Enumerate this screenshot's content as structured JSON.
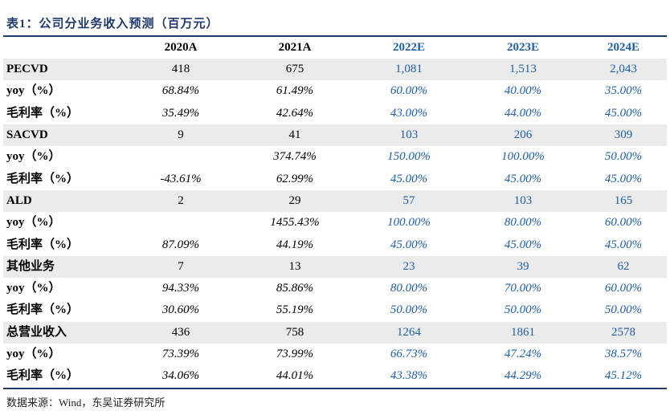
{
  "title": "表1：公司分业务收入预测（百万元）",
  "columns": [
    "",
    "2020A",
    "2021A",
    "2022E",
    "2023E",
    "2024E"
  ],
  "groups": [
    {
      "rows": [
        {
          "label": "PECVD",
          "type": "num",
          "values": [
            "418",
            "675",
            "1,081",
            "1,513",
            "2,043"
          ]
        },
        {
          "label": "yoy（%）",
          "type": "pct",
          "values": [
            "68.84%",
            "61.49%",
            "60.00%",
            "40.00%",
            "35.00%"
          ]
        },
        {
          "label": "毛利率（%）",
          "type": "pct",
          "values": [
            "35.49%",
            "42.64%",
            "43.00%",
            "44.00%",
            "45.00%"
          ]
        }
      ]
    },
    {
      "rows": [
        {
          "label": "SACVD",
          "type": "num",
          "values": [
            "9",
            "41",
            "103",
            "206",
            "309"
          ]
        },
        {
          "label": "yoy（%）",
          "type": "pct",
          "values": [
            "",
            "374.74%",
            "150.00%",
            "100.00%",
            "50.00%"
          ]
        },
        {
          "label": "毛利率（%）",
          "type": "pct",
          "values": [
            "-43.61%",
            "62.99%",
            "45.00%",
            "45.00%",
            "45.00%"
          ]
        }
      ]
    },
    {
      "rows": [
        {
          "label": "ALD",
          "type": "num",
          "values": [
            "2",
            "29",
            "57",
            "103",
            "165"
          ]
        },
        {
          "label": "yoy（%）",
          "type": "pct",
          "values": [
            "",
            "1455.43%",
            "100.00%",
            "80.00%",
            "60.00%"
          ]
        },
        {
          "label": "毛利率（%）",
          "type": "pct",
          "values": [
            "87.09%",
            "44.19%",
            "45.00%",
            "45.00%",
            "45.00%"
          ]
        }
      ]
    },
    {
      "rows": [
        {
          "label": "其他业务",
          "type": "num",
          "values": [
            "7",
            "13",
            "23",
            "39",
            "62"
          ]
        },
        {
          "label": "yoy（%）",
          "type": "pct",
          "values": [
            "94.33%",
            "85.86%",
            "80.00%",
            "70.00%",
            "60.00%"
          ]
        },
        {
          "label": "毛利率（%）",
          "type": "pct",
          "values": [
            "30.60%",
            "55.19%",
            "50.00%",
            "50.00%",
            "50.00%"
          ]
        }
      ]
    },
    {
      "rows": [
        {
          "label": "总营业收入",
          "type": "num",
          "values": [
            "436",
            "758",
            "1264",
            "1861",
            "2578"
          ]
        },
        {
          "label": "yoy（%）",
          "type": "pct",
          "values": [
            "73.39%",
            "73.99%",
            "66.73%",
            "47.24%",
            "38.57%"
          ]
        },
        {
          "label": "毛利率（%）",
          "type": "pct",
          "values": [
            "34.06%",
            "44.01%",
            "43.38%",
            "44.29%",
            "45.12%"
          ]
        }
      ]
    }
  ],
  "source": "数据来源：Wind，东吴证券研究所",
  "colors": {
    "header_text": "#1f3a6b",
    "projection_text": "#1f5fa8",
    "shaded_row": "#ebebeb"
  }
}
